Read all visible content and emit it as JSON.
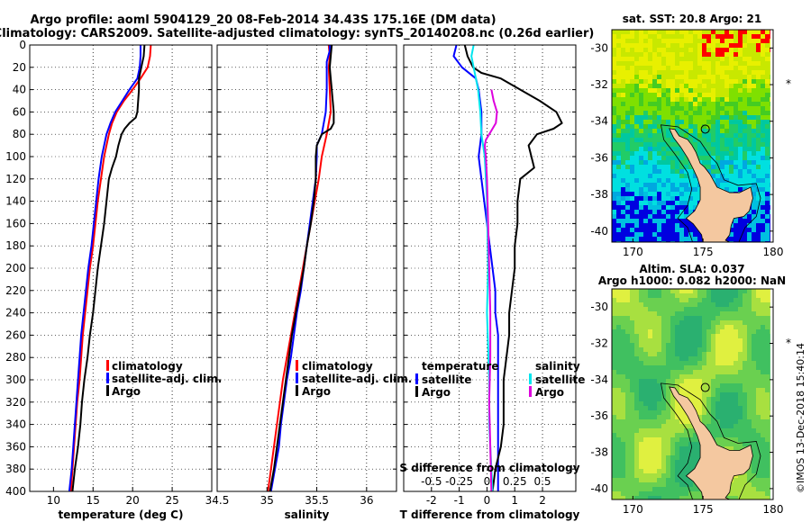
{
  "title": {
    "line1": "Argo profile: aoml 5904129_20 08-Feb-2014 34.43S 175.16E (DM data)",
    "line2": "Climatology: CARS2009. Satellite-adjusted climatology: synTS_20140208.nc (0.26d earlier)"
  },
  "colors": {
    "climatology": "#ff0000",
    "satellite": "#0000ff",
    "argo": "#000000",
    "satellite_s": "#00e5ee",
    "climatology_s": "#dd00dd",
    "land": "#f4c8a0"
  },
  "depth_ticks": [
    "0",
    "20",
    "40",
    "60",
    "80",
    "100",
    "120",
    "140",
    "160",
    "180",
    "200",
    "220",
    "240",
    "260",
    "280",
    "300",
    "320",
    "340",
    "360",
    "380",
    "400"
  ],
  "chart_data": [
    {
      "type": "line",
      "name": "temperature-panel",
      "xlabel": "temperature (deg C)",
      "ylabel": "depth",
      "xlim": [
        7,
        30
      ],
      "ylim": [
        0,
        400
      ],
      "x_ticks": [
        "10",
        "15",
        "20",
        "25"
      ],
      "legend": [
        "climatology",
        "satellite-adj. clim.",
        "Argo"
      ],
      "series": [
        {
          "name": "climatology",
          "color": "#ff0000",
          "points": [
            [
              22.3,
              0
            ],
            [
              22.2,
              10
            ],
            [
              21.9,
              20
            ],
            [
              21.0,
              30
            ],
            [
              20.0,
              40
            ],
            [
              18.9,
              50
            ],
            [
              18.0,
              60
            ],
            [
              17.4,
              70
            ],
            [
              17.0,
              80
            ],
            [
              16.7,
              90
            ],
            [
              16.4,
              100
            ],
            [
              16.0,
              120
            ],
            [
              15.6,
              140
            ],
            [
              15.3,
              160
            ],
            [
              15.0,
              180
            ],
            [
              14.6,
              200
            ],
            [
              14.3,
              220
            ],
            [
              14.0,
              240
            ],
            [
              13.7,
              260
            ],
            [
              13.5,
              280
            ],
            [
              13.3,
              300
            ],
            [
              13.0,
              320
            ],
            [
              12.8,
              340
            ],
            [
              12.6,
              360
            ],
            [
              12.4,
              380
            ],
            [
              12.2,
              400
            ]
          ]
        },
        {
          "name": "satellite-adj. clim.",
          "color": "#0000ff",
          "points": [
            [
              21.0,
              0
            ],
            [
              21.0,
              10
            ],
            [
              20.9,
              20
            ],
            [
              20.6,
              30
            ],
            [
              19.6,
              40
            ],
            [
              18.7,
              50
            ],
            [
              17.8,
              60
            ],
            [
              17.2,
              70
            ],
            [
              16.7,
              80
            ],
            [
              16.4,
              90
            ],
            [
              16.1,
              100
            ],
            [
              15.7,
              120
            ],
            [
              15.4,
              140
            ],
            [
              15.1,
              160
            ],
            [
              14.8,
              180
            ],
            [
              14.4,
              200
            ],
            [
              14.1,
              220
            ],
            [
              13.8,
              240
            ],
            [
              13.5,
              260
            ],
            [
              13.3,
              280
            ],
            [
              13.1,
              300
            ],
            [
              12.9,
              320
            ],
            [
              12.7,
              340
            ],
            [
              12.5,
              360
            ],
            [
              12.3,
              380
            ],
            [
              12.0,
              400
            ]
          ]
        },
        {
          "name": "Argo",
          "color": "#000000",
          "points": [
            [
              21.5,
              0
            ],
            [
              21.4,
              10
            ],
            [
              21.1,
              20
            ],
            [
              20.8,
              30
            ],
            [
              20.8,
              40
            ],
            [
              20.7,
              50
            ],
            [
              20.6,
              60
            ],
            [
              20.4,
              65
            ],
            [
              19.6,
              70
            ],
            [
              19.0,
              75
            ],
            [
              18.6,
              80
            ],
            [
              18.2,
              90
            ],
            [
              17.9,
              100
            ],
            [
              17.4,
              110
            ],
            [
              17.0,
              120
            ],
            [
              16.7,
              140
            ],
            [
              16.4,
              160
            ],
            [
              16.0,
              180
            ],
            [
              15.6,
              200
            ],
            [
              15.3,
              220
            ],
            [
              15.0,
              240
            ],
            [
              14.6,
              260
            ],
            [
              14.3,
              280
            ],
            [
              13.9,
              300
            ],
            [
              13.6,
              320
            ],
            [
              13.4,
              340
            ],
            [
              13.1,
              360
            ],
            [
              12.7,
              380
            ],
            [
              12.4,
              400
            ]
          ]
        }
      ]
    },
    {
      "type": "line",
      "name": "salinity-panel",
      "xlabel": "salinity",
      "ylabel": "depth",
      "xlim": [
        34.5,
        36.3
      ],
      "ylim": [
        0,
        400
      ],
      "x_ticks": [
        "34.5",
        "35",
        "35.5",
        "36"
      ],
      "legend": [
        "climatology",
        "satellite-adj. clim.",
        "Argo"
      ],
      "series": [
        {
          "name": "climatology",
          "color": "#ff0000",
          "points": [
            [
              35.62,
              0
            ],
            [
              35.63,
              10
            ],
            [
              35.62,
              20
            ],
            [
              35.63,
              40
            ],
            [
              35.64,
              60
            ],
            [
              35.6,
              80
            ],
            [
              35.55,
              100
            ],
            [
              35.52,
              120
            ],
            [
              35.48,
              140
            ],
            [
              35.44,
              160
            ],
            [
              35.4,
              180
            ],
            [
              35.36,
              200
            ],
            [
              35.32,
              220
            ],
            [
              35.28,
              240
            ],
            [
              35.24,
              260
            ],
            [
              35.2,
              280
            ],
            [
              35.16,
              300
            ],
            [
              35.13,
              320
            ],
            [
              35.1,
              340
            ],
            [
              35.07,
              360
            ],
            [
              35.04,
              380
            ],
            [
              35.01,
              400
            ]
          ]
        },
        {
          "name": "satellite-adj. clim.",
          "color": "#0000ff",
          "points": [
            [
              35.63,
              0
            ],
            [
              35.63,
              5
            ],
            [
              35.6,
              15
            ],
            [
              35.6,
              25
            ],
            [
              35.6,
              40
            ],
            [
              35.59,
              60
            ],
            [
              35.55,
              80
            ],
            [
              35.5,
              90
            ],
            [
              35.5,
              100
            ],
            [
              35.49,
              120
            ],
            [
              35.46,
              140
            ],
            [
              35.43,
              160
            ],
            [
              35.4,
              180
            ],
            [
              35.37,
              200
            ],
            [
              35.34,
              220
            ],
            [
              35.3,
              240
            ],
            [
              35.27,
              260
            ],
            [
              35.24,
              280
            ],
            [
              35.2,
              300
            ],
            [
              35.17,
              320
            ],
            [
              35.14,
              340
            ],
            [
              35.12,
              360
            ],
            [
              35.08,
              380
            ],
            [
              35.04,
              400
            ]
          ]
        },
        {
          "name": "Argo",
          "color": "#000000",
          "points": [
            [
              35.65,
              0
            ],
            [
              35.64,
              10
            ],
            [
              35.63,
              20
            ],
            [
              35.64,
              30
            ],
            [
              35.65,
              40
            ],
            [
              35.66,
              50
            ],
            [
              35.67,
              60
            ],
            [
              35.67,
              70
            ],
            [
              35.64,
              75
            ],
            [
              35.55,
              80
            ],
            [
              35.5,
              90
            ],
            [
              35.49,
              100
            ],
            [
              35.49,
              120
            ],
            [
              35.47,
              140
            ],
            [
              35.44,
              160
            ],
            [
              35.4,
              180
            ],
            [
              35.37,
              200
            ],
            [
              35.33,
              220
            ],
            [
              35.29,
              240
            ],
            [
              35.25,
              260
            ],
            [
              35.22,
              280
            ],
            [
              35.19,
              300
            ],
            [
              35.16,
              320
            ],
            [
              35.13,
              340
            ],
            [
              35.1,
              360
            ],
            [
              35.07,
              380
            ],
            [
              35.03,
              400
            ]
          ]
        }
      ]
    },
    {
      "type": "line",
      "name": "difference-panel",
      "xlabel": "T difference from climatology",
      "x2label": "S difference from climatology",
      "ylabel": "depth",
      "xlim": [
        -3,
        3.2
      ],
      "ylim": [
        0,
        400
      ],
      "x_ticks": [
        "-2",
        "-1",
        "0",
        "1",
        "2"
      ],
      "x2_ticks": [
        "-0.5",
        "-0.25",
        "0",
        "0.25",
        "0.5"
      ],
      "legend_temperature_title": "temperature",
      "legend_salinity_title": "salinity",
      "legend": [
        "satellite",
        "Argo",
        "satellite",
        "Argo"
      ],
      "series": [
        {
          "name": "temperature satellite",
          "color": "#0000ff",
          "points": [
            [
              -1.1,
              0
            ],
            [
              -1.2,
              10
            ],
            [
              -0.9,
              20
            ],
            [
              -0.4,
              30
            ],
            [
              -0.3,
              40
            ],
            [
              -0.2,
              60
            ],
            [
              -0.2,
              80
            ],
            [
              -0.3,
              100
            ],
            [
              -0.2,
              120
            ],
            [
              -0.1,
              140
            ],
            [
              0.0,
              160
            ],
            [
              0.1,
              180
            ],
            [
              0.2,
              200
            ],
            [
              0.3,
              220
            ],
            [
              0.3,
              240
            ],
            [
              0.4,
              260
            ],
            [
              0.4,
              280
            ],
            [
              0.4,
              300
            ],
            [
              0.4,
              320
            ],
            [
              0.4,
              340
            ],
            [
              0.4,
              360
            ],
            [
              0.4,
              380
            ],
            [
              0.4,
              400
            ]
          ]
        },
        {
          "name": "temperature Argo",
          "color": "#000000",
          "points": [
            [
              -0.8,
              0
            ],
            [
              -0.7,
              10
            ],
            [
              -0.5,
              20
            ],
            [
              -0.2,
              25
            ],
            [
              0.5,
              30
            ],
            [
              1.2,
              40
            ],
            [
              1.9,
              50
            ],
            [
              2.5,
              60
            ],
            [
              2.7,
              70
            ],
            [
              2.4,
              75
            ],
            [
              1.8,
              80
            ],
            [
              1.5,
              90
            ],
            [
              1.6,
              100
            ],
            [
              1.7,
              110
            ],
            [
              1.2,
              120
            ],
            [
              1.1,
              140
            ],
            [
              1.1,
              160
            ],
            [
              1.0,
              180
            ],
            [
              1.0,
              200
            ],
            [
              0.9,
              220
            ],
            [
              0.8,
              240
            ],
            [
              0.8,
              260
            ],
            [
              0.7,
              280
            ],
            [
              0.6,
              300
            ],
            [
              0.6,
              320
            ],
            [
              0.6,
              340
            ],
            [
              0.5,
              360
            ],
            [
              0.3,
              380
            ],
            [
              0.2,
              400
            ]
          ]
        },
        {
          "name": "salinity satellite",
          "color": "#00e5ee",
          "points": [
            [
              -0.12,
              0
            ],
            [
              -0.14,
              10
            ],
            [
              -0.12,
              20
            ],
            [
              -0.08,
              40
            ],
            [
              -0.06,
              60
            ],
            [
              -0.05,
              80
            ],
            [
              -0.02,
              100
            ],
            [
              0.0,
              140
            ],
            [
              0.01,
              200
            ],
            [
              0.0,
              240
            ],
            [
              0.02,
              300
            ],
            [
              0.02,
              340
            ],
            [
              0.04,
              380
            ],
            [
              0.05,
              400
            ]
          ]
        },
        {
          "name": "salinity Argo",
          "color": "#dd00dd",
          "points": [
            [
              0.04,
              40
            ],
            [
              0.06,
              50
            ],
            [
              0.09,
              60
            ],
            [
              0.08,
              70
            ],
            [
              0.02,
              80
            ],
            [
              -0.01,
              85
            ],
            [
              -0.02,
              90
            ],
            [
              -0.01,
              100
            ],
            [
              0.0,
              120
            ],
            [
              0.01,
              160
            ],
            [
              0.02,
              200
            ],
            [
              0.03,
              240
            ],
            [
              0.03,
              280
            ],
            [
              0.02,
              320
            ],
            [
              0.03,
              360
            ],
            [
              0.04,
              400
            ]
          ]
        }
      ]
    }
  ],
  "maps": {
    "sst": {
      "title": "sat. SST: 20.8 Argo: 21",
      "x_ticks": [
        "170",
        "175",
        "180"
      ],
      "y_ticks": [
        "-30",
        "-32",
        "-34",
        "-36",
        "-38",
        "-40"
      ]
    },
    "sla": {
      "title1": "Altim. SLA: 0.037",
      "title2": "Argo h1000: 0.082 h2000: NaN",
      "x_ticks": [
        "170",
        "175",
        "180"
      ],
      "y_ticks": [
        "-30",
        "-32",
        "-34",
        "-36",
        "-38",
        "-40"
      ]
    },
    "marker": {
      "lon": 175.16,
      "lat": -34.43
    }
  },
  "stamp": "©IMOS 13-Dec-2018 15:40:14"
}
